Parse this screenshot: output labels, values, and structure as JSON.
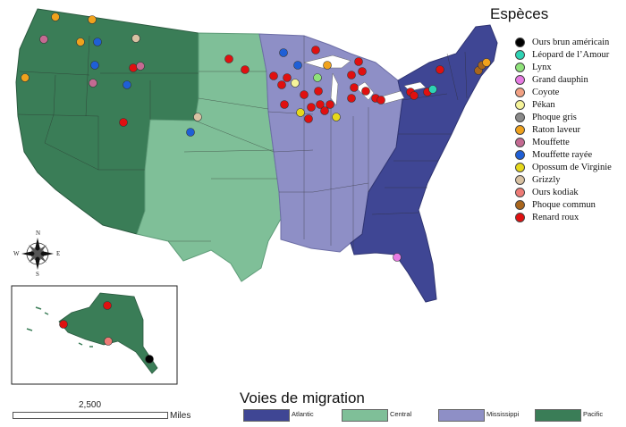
{
  "species_legend": {
    "title": "Espèces",
    "items": [
      {
        "label": "Ours brun américain",
        "color": "#000000"
      },
      {
        "label": "Léopard de l’Amour",
        "color": "#2ed3b4"
      },
      {
        "label": "Lynx",
        "color": "#8fe37a"
      },
      {
        "label": "Grand dauphin",
        "color": "#e77be3"
      },
      {
        "label": "Coyote",
        "color": "#f2a183"
      },
      {
        "label": "Pékan",
        "color": "#f6f49a"
      },
      {
        "label": "Phoque gris",
        "color": "#8a8a8a"
      },
      {
        "label": "Raton laveur",
        "color": "#f0a21d"
      },
      {
        "label": "Mouffette",
        "color": "#c46a92"
      },
      {
        "label": "Mouffette rayée",
        "color": "#1f5fd6"
      },
      {
        "label": "Opossum de Virginie",
        "color": "#e6d81b"
      },
      {
        "label": "Grizzly",
        "color": "#d9c2a3"
      },
      {
        "label": "Ours kodiak",
        "color": "#ee7b76"
      },
      {
        "label": "Phoque commun",
        "color": "#a9661c"
      },
      {
        "label": "Renard roux",
        "color": "#e01010"
      }
    ]
  },
  "flyway_legend": {
    "title": "Voies de migration",
    "items": [
      {
        "label": "Atlantic",
        "color": "#3f4694"
      },
      {
        "label": "Central",
        "color": "#7fbf98"
      },
      {
        "label": "Mississippi",
        "color": "#8e8fc6"
      },
      {
        "label": "Pacific",
        "color": "#3a7d57"
      }
    ]
  },
  "scale_bar": {
    "value": "2,500",
    "unit": "Miles"
  },
  "compass": {
    "n": "N",
    "s": "S",
    "e": "E",
    "w": "W"
  }
}
